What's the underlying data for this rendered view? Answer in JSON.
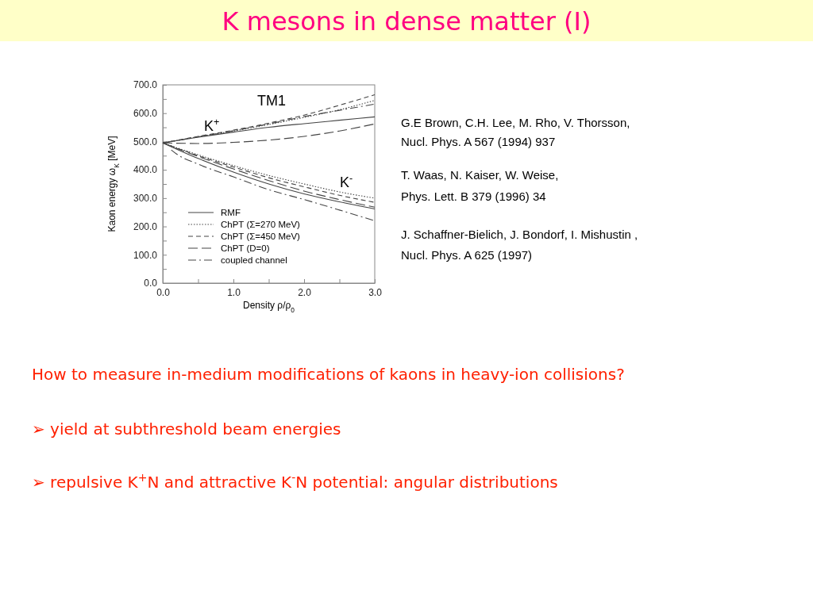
{
  "chart_data": {
    "type": "line",
    "title": "K mesons in dense matter (I)",
    "xlabel": "Density ρ/ρ$_{0}$",
    "ylabel": "Kaon energy ω$_{K}$ [MeV]",
    "xlim": [
      0,
      3
    ],
    "ylim": [
      0,
      700
    ],
    "xticks": [
      {
        "value": 0,
        "label": "0.0"
      },
      {
        "value": 0.5,
        "label": null
      },
      {
        "value": 1,
        "label": "1.0"
      },
      {
        "value": 1.5,
        "label": null
      },
      {
        "value": 2,
        "label": "2.0"
      },
      {
        "value": 2.5,
        "label": null
      },
      {
        "value": 3,
        "label": "3.0"
      }
    ],
    "yticks": [
      {
        "value": 0,
        "label": "0.0"
      },
      {
        "value": 50,
        "label": null
      },
      {
        "value": 100,
        "label": "100.0"
      },
      {
        "value": 150,
        "label": null
      },
      {
        "value": 200,
        "label": "200.0"
      },
      {
        "value": 250,
        "label": null
      },
      {
        "value": 300,
        "label": "300.0"
      },
      {
        "value": 350,
        "label": null
      },
      {
        "value": 400,
        "label": "400.0"
      },
      {
        "value": 450,
        "label": null
      },
      {
        "value": 500,
        "label": "500.0"
      },
      {
        "value": 550,
        "label": null
      },
      {
        "value": 600,
        "label": "600.0"
      },
      {
        "value": 650,
        "label": null
      },
      {
        "value": 700,
        "label": "700.0"
      }
    ],
    "x": [
      0,
      0.5,
      1,
      1.5,
      2,
      2.5,
      3
    ],
    "legend": "bottom left",
    "grid": false,
    "marker": "none",
    "series": [
      {
        "name": "RMF",
        "color": "#444444",
        "line_style": "solid",
        "values": [
          495,
          515,
          533,
          550,
          563,
          575,
          587
        ]
      },
      {
        "name": "ChPT (Σ=270 MeV)",
        "color": "#444444",
        "line_style": "dotted",
        "values": [
          495,
          517,
          537,
          560,
          585,
          612,
          645
        ]
      },
      {
        "name": "ChPT (Σ=450 MeV)",
        "color": "#444444",
        "line_style": "dashed",
        "values": [
          495,
          518,
          540,
          565,
          593,
          628,
          665
        ]
      },
      {
        "name": "ChPT (D=0)",
        "color": "#444444",
        "line_style": "longdash",
        "values": [
          495,
          493,
          497,
          505,
          518,
          537,
          562
        ]
      },
      {
        "name": "coupled channel",
        "color": "#444444",
        "line_style": "dashdot",
        "values": [
          495,
          516,
          538,
          562,
          588,
          610,
          632
        ]
      },
      {
        "color": "#444444",
        "line_style": "solid",
        "values": [
          495,
          440,
          392,
          350,
          315,
          287,
          262
        ]
      },
      {
        "color": "#444444",
        "line_style": "dotted",
        "values": [
          495,
          453,
          415,
          380,
          350,
          322,
          300
        ]
      },
      {
        "color": "#444444",
        "line_style": "dashed",
        "values": [
          495,
          450,
          410,
          372,
          340,
          310,
          285
        ]
      },
      {
        "color": "#444444",
        "line_style": "longdash",
        "values": [
          495,
          447,
          403,
          362,
          325,
          295,
          268
        ]
      },
      {
        "color": "#444444",
        "line_style": "dashdot",
        "x": [
          0.12,
          0.2,
          0.5,
          1,
          1.5,
          2,
          2.5,
          3
        ],
        "values": [
          470,
          455,
          420,
          375,
          330,
          295,
          258,
          220
        ]
      }
    ],
    "annotations": [
      "K$^{+}$",
      "K$^{-}$",
      "TM1",
      "G.E Brown, C.H. Lee, M. Rho, V. Thorsson,",
      "Nucl. Phys. A 567 (1994) 937",
      "T. Waas, N. Kaiser, W. Weise,",
      "Phys. Lett. B 379 (1996) 34",
      "J. Schaffner-Bielich, J. Bondorf, I. Mishustin ,",
      "Nucl. Phys. A 625 (1997)",
      "How to measure in-medium modifications of kaons in heavy-ion collisions?",
      "➢ yield at subthreshold beam energies",
      "➢ repulsive K$^{+}$N and attractive K$^{-}$N potential: angular distributions"
    ]
  }
}
